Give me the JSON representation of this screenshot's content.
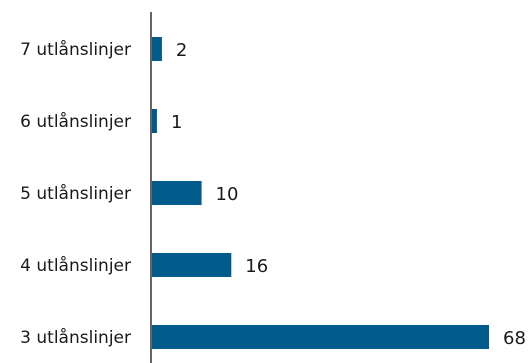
{
  "chart_data": {
    "type": "bar",
    "orientation": "horizontal",
    "categories": [
      "7 utlånslinjer",
      "6 utlånslinjer",
      "5 utlånslinjer",
      "4 utlånslinjer",
      "3 utlånslinjer"
    ],
    "values": [
      2,
      1,
      10,
      16,
      68
    ],
    "value_labels": [
      "2",
      "1",
      "10",
      "16",
      "68"
    ],
    "title": "",
    "xlabel": "",
    "ylabel": "",
    "xlim": [
      0,
      68
    ],
    "grid": false,
    "legend": "none",
    "bar_color": "#005a8c",
    "axis_color": "#333333"
  }
}
